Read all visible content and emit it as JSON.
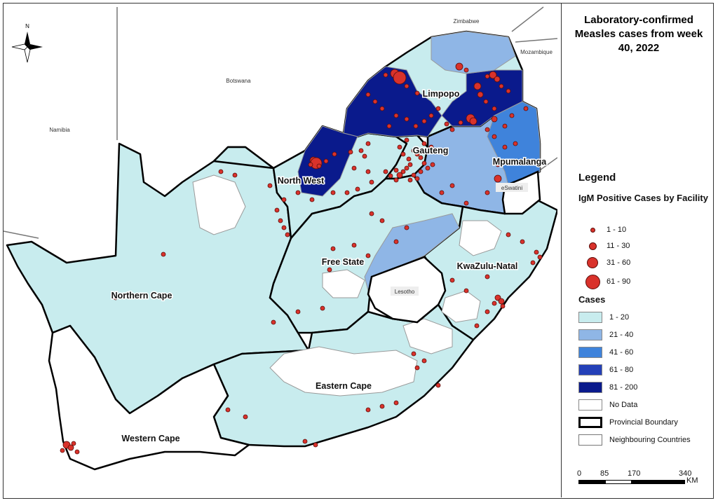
{
  "title": "Laboratory-confirmed Measles cases from week 40, 2022",
  "legend": {
    "heading": "Legend",
    "facility_heading": "IgM Positive Cases by Facility",
    "facility_items": [
      {
        "label": "1 - 10"
      },
      {
        "label": "11 - 30"
      },
      {
        "label": "31 - 60"
      },
      {
        "label": "61 - 90"
      }
    ],
    "cases_heading": "Cases",
    "cases_items": [
      {
        "label": "1 - 20",
        "color": "#c8ecee"
      },
      {
        "label": "21 - 40",
        "color": "#8fb6e6"
      },
      {
        "label": "41 - 60",
        "color": "#3f83db"
      },
      {
        "label": "61 - 80",
        "color": "#2440b8"
      },
      {
        "label": "81 - 200",
        "color": "#0a1a8c"
      },
      {
        "label": "No Data",
        "color": "#ffffff"
      }
    ],
    "boundary_provincial": "Provincial Boundary",
    "boundary_countries": "Neighbouring Countries"
  },
  "scale_bar": {
    "ticks": [
      "0",
      "85",
      "170",
      "340"
    ],
    "unit": "KM"
  },
  "provinces": {
    "limpopo": "Limpopo",
    "gauteng": "Gauteng",
    "mpumalanga": "Mpumalanga",
    "north_west": "North West",
    "free_state": "Free State",
    "kwazulu_natal": "KwaZulu-Natal",
    "northern_cape": "Northern Cape",
    "eastern_cape": "Eastern Cape",
    "western_cape": "Western Cape"
  },
  "countries": {
    "zimbabwe": "Zimbabwe",
    "mozambique": "Mozambique",
    "botswana": "Botswana",
    "namibia": "Namibia",
    "eswatini": "eSwatini",
    "lesotho": "Lesotho"
  },
  "north_arrow": "N",
  "colors": {
    "dot_fill": "#d9322b",
    "dot_stroke": "#5a0d0a",
    "provincial_boundary": "#000000",
    "district_boundary": "#999999"
  }
}
